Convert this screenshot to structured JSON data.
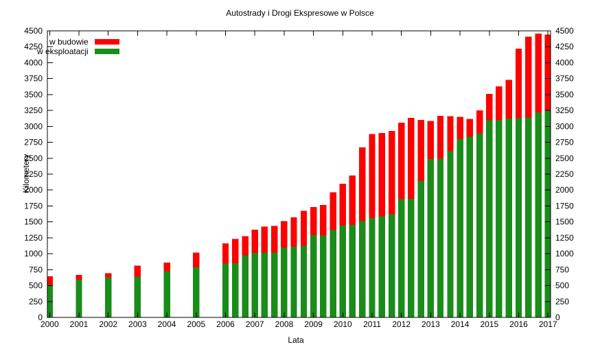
{
  "chart_data": {
    "type": "bar",
    "stacked": true,
    "title": "Autostrady i Drogi Ekspresowe w Polsce",
    "xlabel": "Lata",
    "ylabel": "Kilometery",
    "ylim": [
      0,
      4500
    ],
    "ytick_step": 250,
    "yticks": [
      0,
      250,
      500,
      750,
      1000,
      1250,
      1500,
      1750,
      2000,
      2250,
      2500,
      2750,
      3000,
      3250,
      3500,
      3750,
      4000,
      4250,
      4500
    ],
    "xticks": [
      2000,
      2001,
      2002,
      2003,
      2004,
      2005,
      2006,
      2007,
      2008,
      2009,
      2010,
      2011,
      2012,
      2013,
      2014,
      2015,
      2016,
      2017
    ],
    "grid": false,
    "legend_position": "top-left-inside",
    "legend": [
      {
        "label": "w budowie",
        "series": "budowa",
        "color": "#ff0000"
      },
      {
        "label": "w eksploatacji",
        "series": "eksploatacja",
        "color": "#1a8c1a"
      }
    ],
    "series_order_bottom_to_top": [
      "eksploatacja",
      "budowa"
    ],
    "bars": [
      {
        "x": 2000,
        "eksploatacja": 510,
        "budowa": 135
      },
      {
        "x": 2001,
        "eksploatacja": 590,
        "budowa": 75
      },
      {
        "x": 2002,
        "eksploatacja": 630,
        "budowa": 65
      },
      {
        "x": 2003,
        "eksploatacja": 640,
        "budowa": 175
      },
      {
        "x": 2004,
        "eksploatacja": 725,
        "budowa": 135
      },
      {
        "x": 2005,
        "eksploatacja": 785,
        "budowa": 235
      },
      {
        "x": 2006,
        "eksploatacja": 845,
        "budowa": 320
      },
      {
        "x": 2006.33,
        "eksploatacja": 850,
        "budowa": 385
      },
      {
        "x": 2006.67,
        "eksploatacja": 975,
        "budowa": 300
      },
      {
        "x": 2007,
        "eksploatacja": 1010,
        "budowa": 370
      },
      {
        "x": 2007.33,
        "eksploatacja": 1015,
        "budowa": 410
      },
      {
        "x": 2007.67,
        "eksploatacja": 1020,
        "budowa": 415
      },
      {
        "x": 2008,
        "eksploatacja": 1100,
        "budowa": 415
      },
      {
        "x": 2008.33,
        "eksploatacja": 1110,
        "budowa": 460
      },
      {
        "x": 2008.67,
        "eksploatacja": 1125,
        "budowa": 550
      },
      {
        "x": 2009,
        "eksploatacja": 1290,
        "budowa": 445
      },
      {
        "x": 2009.33,
        "eksploatacja": 1285,
        "budowa": 480
      },
      {
        "x": 2009.67,
        "eksploatacja": 1370,
        "budowa": 595
      },
      {
        "x": 2010,
        "eksploatacja": 1445,
        "budowa": 655
      },
      {
        "x": 2010.33,
        "eksploatacja": 1455,
        "budowa": 775
      },
      {
        "x": 2010.67,
        "eksploatacja": 1510,
        "budowa": 1160
      },
      {
        "x": 2011,
        "eksploatacja": 1560,
        "budowa": 1320
      },
      {
        "x": 2011.33,
        "eksploatacja": 1590,
        "budowa": 1305
      },
      {
        "x": 2011.67,
        "eksploatacja": 1620,
        "budowa": 1310
      },
      {
        "x": 2012,
        "eksploatacja": 1855,
        "budowa": 1205
      },
      {
        "x": 2012.33,
        "eksploatacja": 1865,
        "budowa": 1270
      },
      {
        "x": 2012.67,
        "eksploatacja": 2140,
        "budowa": 960
      },
      {
        "x": 2013,
        "eksploatacja": 2485,
        "budowa": 600
      },
      {
        "x": 2013.33,
        "eksploatacja": 2490,
        "budowa": 675
      },
      {
        "x": 2013.67,
        "eksploatacja": 2610,
        "budowa": 550
      },
      {
        "x": 2014,
        "eksploatacja": 2800,
        "budowa": 350
      },
      {
        "x": 2014.33,
        "eksploatacja": 2835,
        "budowa": 280
      },
      {
        "x": 2014.67,
        "eksploatacja": 2890,
        "budowa": 360
      },
      {
        "x": 2015,
        "eksploatacja": 3095,
        "budowa": 415
      },
      {
        "x": 2015.33,
        "eksploatacja": 3100,
        "budowa": 530
      },
      {
        "x": 2015.67,
        "eksploatacja": 3120,
        "budowa": 610
      },
      {
        "x": 2016,
        "eksploatacja": 3130,
        "budowa": 1090
      },
      {
        "x": 2016.33,
        "eksploatacja": 3140,
        "budowa": 1270
      },
      {
        "x": 2016.67,
        "eksploatacja": 3220,
        "budowa": 1235
      },
      {
        "x": 2017,
        "eksploatacja": 3245,
        "budowa": 1195
      }
    ]
  }
}
